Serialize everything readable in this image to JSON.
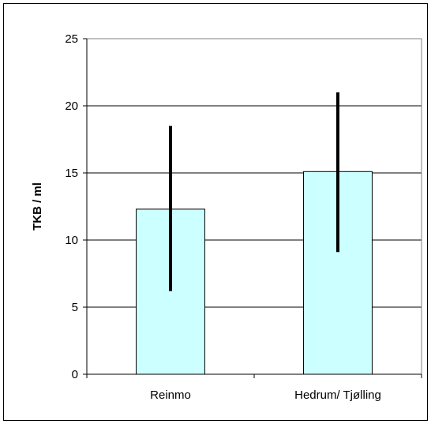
{
  "chart_data": {
    "type": "bar",
    "title": "",
    "xlabel": "",
    "ylabel": "TKB / ml",
    "categories": [
      "Reinmo",
      "Hedrum/ Tjølling"
    ],
    "values": [
      12.3,
      15.1
    ],
    "error_bars": [
      {
        "low": 6.2,
        "high": 18.5
      },
      {
        "low": 9.1,
        "high": 21.0
      }
    ],
    "ylim": [
      0,
      25
    ],
    "yticks": [
      "0",
      "5",
      "10",
      "15",
      "20",
      "25"
    ],
    "grid": true,
    "legend": "none",
    "colors": {
      "bar_fill": "#ccffff",
      "bar_stroke": "#000000",
      "error_bar": "#000000",
      "gridline": "#000000"
    }
  }
}
